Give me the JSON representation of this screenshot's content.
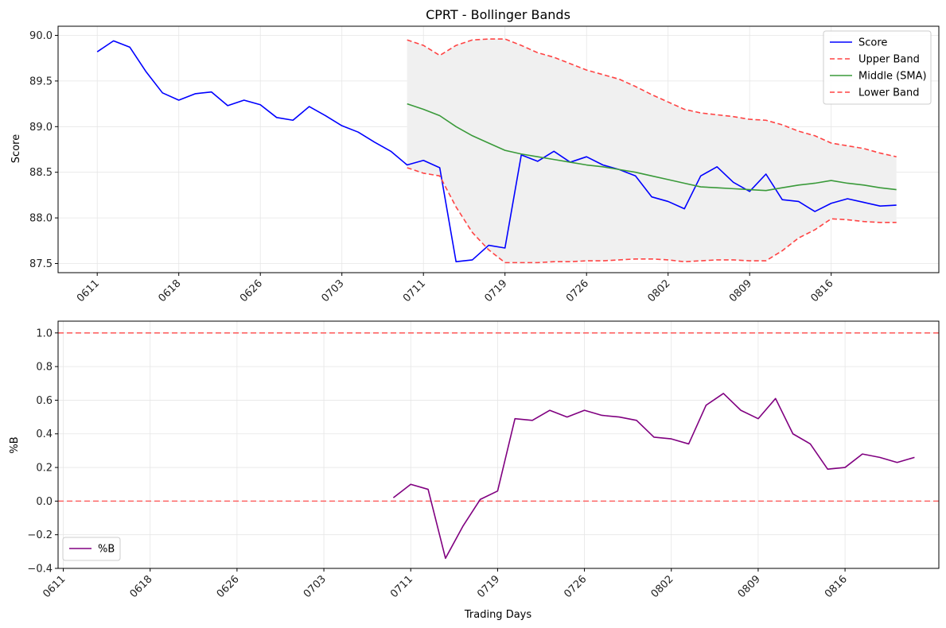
{
  "chart_data": [
    {
      "type": "line",
      "title": "CPRT - Bollinger Bands",
      "xlabel": "",
      "ylabel": "Score",
      "xtick_labels": [
        "0611",
        "0618",
        "0626",
        "0703",
        "0711",
        "0719",
        "0726",
        "0802",
        "0809",
        "0816"
      ],
      "xtick_positions": [
        0,
        5,
        10,
        15,
        20,
        25,
        30,
        35,
        40,
        45
      ],
      "ylim": [
        87.4,
        90.1
      ],
      "yticks": [
        87.5,
        88.0,
        88.5,
        89.0,
        89.5,
        90.0
      ],
      "ytick_labels": [
        "87.5",
        "88.0",
        "88.5",
        "89.0",
        "89.5",
        "90.0"
      ],
      "grid": true,
      "legend_position": "upper right",
      "series": [
        {
          "name": "Score",
          "color": "#0000ff",
          "style": "solid",
          "x": [
            0,
            1,
            2,
            3,
            4,
            5,
            6,
            7,
            8,
            9,
            10,
            11,
            12,
            13,
            14,
            15,
            16,
            17,
            18,
            19,
            20,
            21,
            22,
            23,
            24,
            25,
            26,
            27,
            28,
            29,
            30,
            31,
            32,
            33,
            34,
            35,
            36,
            37,
            38,
            39,
            40,
            41,
            42,
            43,
            44,
            45,
            46,
            47,
            48,
            49
          ],
          "values": [
            89.82,
            89.94,
            89.87,
            89.6,
            89.37,
            89.29,
            89.36,
            89.38,
            89.23,
            89.29,
            89.24,
            89.1,
            89.07,
            89.22,
            89.12,
            89.01,
            88.94,
            88.83,
            88.73,
            88.58,
            88.63,
            88.55,
            87.52,
            87.54,
            87.7,
            87.67,
            88.69,
            88.62,
            88.73,
            88.61,
            88.67,
            88.58,
            88.53,
            88.46,
            88.23,
            88.18,
            88.1,
            88.46,
            88.56,
            88.39,
            88.29,
            88.48,
            88.2,
            88.18,
            88.07,
            88.16,
            88.21,
            88.17,
            88.13,
            88.14
          ]
        },
        {
          "name": "Upper Band",
          "color": "#ff4444",
          "style": "dashed",
          "x": [
            19,
            20,
            21,
            22,
            23,
            24,
            25,
            26,
            27,
            28,
            29,
            30,
            31,
            32,
            33,
            34,
            35,
            36,
            37,
            38,
            39,
            40,
            41,
            42,
            43,
            44,
            45,
            46,
            47,
            48,
            49
          ],
          "values": [
            89.95,
            89.89,
            89.78,
            89.89,
            89.95,
            89.96,
            89.96,
            89.89,
            89.81,
            89.76,
            89.69,
            89.62,
            89.57,
            89.52,
            89.44,
            89.35,
            89.27,
            89.19,
            89.15,
            89.13,
            89.11,
            89.08,
            89.07,
            89.02,
            88.95,
            88.9,
            88.82,
            88.79,
            88.76,
            88.71,
            88.67
          ]
        },
        {
          "name": "Middle (SMA)",
          "color": "#3a9a3a",
          "style": "solid",
          "x": [
            19,
            20,
            21,
            22,
            23,
            24,
            25,
            26,
            27,
            28,
            29,
            30,
            31,
            32,
            33,
            34,
            35,
            36,
            37,
            38,
            39,
            40,
            41,
            42,
            43,
            44,
            45,
            46,
            47,
            48,
            49
          ],
          "values": [
            89.25,
            89.19,
            89.12,
            89.0,
            88.9,
            88.82,
            88.74,
            88.7,
            88.67,
            88.64,
            88.61,
            88.58,
            88.56,
            88.53,
            88.5,
            88.46,
            88.42,
            88.38,
            88.34,
            88.33,
            88.32,
            88.31,
            88.3,
            88.33,
            88.36,
            88.38,
            88.41,
            88.38,
            88.36,
            88.33,
            88.31
          ]
        },
        {
          "name": "Lower Band",
          "color": "#ff4444",
          "style": "dashed",
          "x": [
            19,
            20,
            21,
            22,
            23,
            24,
            25,
            26,
            27,
            28,
            29,
            30,
            31,
            32,
            33,
            34,
            35,
            36,
            37,
            38,
            39,
            40,
            41,
            42,
            43,
            44,
            45,
            46,
            47,
            48,
            49
          ],
          "values": [
            88.55,
            88.49,
            88.46,
            88.12,
            87.84,
            87.65,
            87.51,
            87.51,
            87.51,
            87.52,
            87.52,
            87.53,
            87.53,
            87.54,
            87.55,
            87.55,
            87.54,
            87.52,
            87.53,
            87.54,
            87.54,
            87.53,
            87.53,
            87.64,
            87.78,
            87.87,
            87.99,
            87.98,
            87.96,
            87.95,
            87.95
          ]
        }
      ],
      "band_fill_color": "#f0f0f0"
    },
    {
      "type": "line",
      "title": "",
      "xlabel": "Trading Days",
      "ylabel": "%B",
      "xtick_labels": [
        "0611",
        "0618",
        "0626",
        "0703",
        "0711",
        "0719",
        "0726",
        "0802",
        "0809",
        "0816"
      ],
      "xtick_positions": [
        0,
        5,
        10,
        15,
        20,
        25,
        30,
        35,
        40,
        45
      ],
      "ylim": [
        -0.4,
        1.07
      ],
      "yticks": [
        -0.4,
        -0.2,
        0.0,
        0.2,
        0.4,
        0.6,
        0.8,
        1.0
      ],
      "ytick_labels": [
        "−0.4",
        "−0.2",
        "0.0",
        "0.2",
        "0.4",
        "0.6",
        "0.8",
        "1.0"
      ],
      "reference_lines": [
        1.0,
        0.0
      ],
      "reference_color": "#ff5555",
      "grid": true,
      "legend_position": "lower left",
      "series": [
        {
          "name": "%B",
          "color": "#800080",
          "style": "solid",
          "x": [
            19,
            20,
            21,
            22,
            23,
            24,
            25,
            26,
            27,
            28,
            29,
            30,
            31,
            32,
            33,
            34,
            35,
            36,
            37,
            38,
            39,
            40,
            41,
            42,
            43,
            44,
            45,
            46,
            47,
            48,
            49
          ],
          "values": [
            0.02,
            0.1,
            0.07,
            -0.34,
            -0.15,
            0.01,
            0.06,
            0.49,
            0.48,
            0.54,
            0.5,
            0.54,
            0.51,
            0.5,
            0.48,
            0.38,
            0.37,
            0.34,
            0.57,
            0.64,
            0.54,
            0.49,
            0.61,
            0.4,
            0.34,
            0.19,
            0.2,
            0.28,
            0.26,
            0.23,
            0.26
          ]
        }
      ]
    }
  ]
}
